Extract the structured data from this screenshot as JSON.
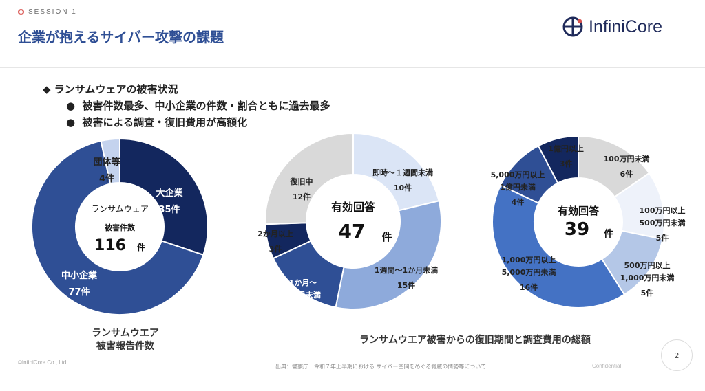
{
  "header": {
    "session": "SESSION 1",
    "title": "企業が抱えるサイバー攻撃の課題",
    "logo_text": "InfiniCore"
  },
  "bullets": {
    "main": "ランサムウェアの被害状況",
    "sub": [
      "被害件数最多、中小企業の件数・割合ともに過去最多",
      "被害による調査・復旧費用が高額化"
    ]
  },
  "chart_data": [
    {
      "type": "pie",
      "center_label_1": "ランサムウェア",
      "center_label_2": "被害件数",
      "center_value": "116",
      "center_unit": "件",
      "caption_lines": [
        "ランサムウエア",
        "被害報告件数"
      ],
      "slices": [
        {
          "label": "大企業",
          "value": 35,
          "value_label": "35件",
          "color": "#13275e",
          "text_color": "#ffffff"
        },
        {
          "label": "中小企業",
          "value": 77,
          "value_label": "77件",
          "color": "#2f4f95",
          "text_color": "#ffffff"
        },
        {
          "label": "団体等",
          "value": 4,
          "value_label": "4件",
          "color": "#c4d3ee",
          "text_color": "#222222"
        }
      ]
    },
    {
      "type": "pie",
      "center_label_1": "有効回答",
      "center_value": "47",
      "center_unit": "件",
      "slices": [
        {
          "label": "即時～１週間未満",
          "value": 10,
          "value_label": "10件",
          "color": "#dbe5f6",
          "text_color": "#222222"
        },
        {
          "label": "1週間～1か月未満",
          "value": 15,
          "value_label": "15件",
          "color": "#8eaadb",
          "text_color": "#222222"
        },
        {
          "label": "1か月～ 2か月未満",
          "value": 7,
          "value_label": "7件",
          "color": "#2f4f95",
          "text_color": "#ffffff"
        },
        {
          "label": "2か月以上",
          "value": 3,
          "value_label": "3件",
          "color": "#13275e",
          "text_color": "#222222"
        },
        {
          "label": "復旧中",
          "value": 12,
          "value_label": "12件",
          "color": "#d9d9d9",
          "text_color": "#222222"
        }
      ]
    },
    {
      "type": "pie",
      "center_label_1": "有効回答",
      "center_value": "39",
      "center_unit": "件",
      "slices": [
        {
          "label": "100万円未満",
          "value": 6,
          "value_label": "6件",
          "color": "#d9d9d9",
          "text_color": "#222222"
        },
        {
          "label": "100万円以上 500万円未満",
          "value": 5,
          "value_label": "5件",
          "color": "#eef2fa",
          "text_color": "#222222"
        },
        {
          "label": "500万円以上 1,000万円未満",
          "value": 5,
          "value_label": "5件",
          "color": "#b4c7e7",
          "text_color": "#222222"
        },
        {
          "label": "1,000万円以上 5,000万円未満",
          "value": 16,
          "value_label": "16件",
          "color": "#4472c4",
          "text_color": "#222222"
        },
        {
          "label": "5,000万円以上 1億円未満",
          "value": 4,
          "value_label": "4件",
          "color": "#2f4f95",
          "text_color": "#222222"
        },
        {
          "label": "1億円以上",
          "value": 3,
          "value_label": "3件",
          "color": "#13275e",
          "text_color": "#222222"
        }
      ]
    }
  ],
  "caption_right": "ランサムウエア被害からの復旧期間と調査費用の総額",
  "footer": {
    "copyright": "©InfiniCore Co., Ltd.",
    "source": "出典：警察庁　令和７年上半期における サイバー空間をめぐる脅威の情勢等について",
    "confidential": "Confidential",
    "page": "2"
  }
}
